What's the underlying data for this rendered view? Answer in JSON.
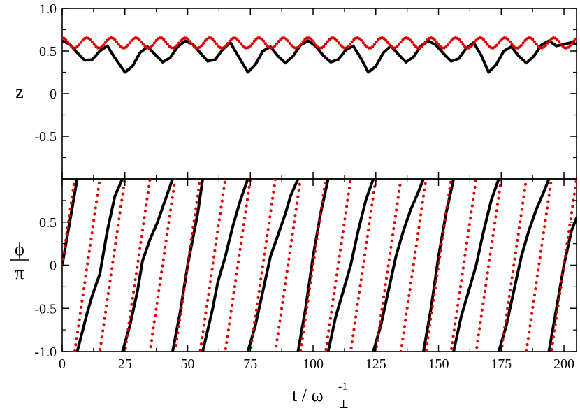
{
  "chart_data": [
    {
      "type": "line",
      "panel": "top",
      "ylabel": "z",
      "xlim": [
        0,
        205
      ],
      "ylim": [
        -1.0,
        1.0
      ],
      "y_ticks": [
        "1.0",
        "0.5",
        "0",
        "-0.5"
      ],
      "y_tick_values": [
        1.0,
        0.5,
        0,
        -0.5
      ],
      "grid": false,
      "colors": {
        "solid": "#000000",
        "dotted": "#e00000"
      },
      "series": [
        {
          "style": "solid-black",
          "x": [
            0,
            3,
            6,
            9,
            12,
            15,
            18,
            21,
            25,
            28,
            31,
            34,
            37,
            40,
            43,
            46,
            49,
            52,
            55,
            58,
            61,
            64,
            67,
            70,
            74,
            77,
            80,
            83,
            86,
            89,
            92,
            95,
            98,
            101,
            104,
            107,
            110,
            113,
            116,
            119,
            122,
            125,
            128,
            131,
            134,
            137,
            140,
            143,
            146,
            149,
            152,
            155,
            158,
            161,
            164,
            167,
            170,
            173,
            176,
            179,
            182,
            185,
            188,
            191,
            194,
            197,
            200,
            203,
            205
          ],
          "values": [
            0.62,
            0.58,
            0.48,
            0.39,
            0.4,
            0.5,
            0.56,
            0.42,
            0.25,
            0.32,
            0.48,
            0.55,
            0.46,
            0.37,
            0.42,
            0.55,
            0.62,
            0.58,
            0.48,
            0.38,
            0.4,
            0.52,
            0.6,
            0.45,
            0.25,
            0.34,
            0.5,
            0.55,
            0.44,
            0.36,
            0.44,
            0.57,
            0.62,
            0.56,
            0.45,
            0.37,
            0.4,
            0.51,
            0.56,
            0.42,
            0.25,
            0.32,
            0.48,
            0.56,
            0.46,
            0.37,
            0.43,
            0.56,
            0.62,
            0.57,
            0.47,
            0.38,
            0.41,
            0.53,
            0.6,
            0.45,
            0.25,
            0.34,
            0.5,
            0.55,
            0.44,
            0.36,
            0.44,
            0.57,
            0.62,
            0.56,
            0.58,
            0.6,
            0.58
          ]
        },
        {
          "style": "dotted-red",
          "oscillation": {
            "mean": 0.595,
            "amplitude": 0.06,
            "period": 9.8
          }
        }
      ]
    },
    {
      "type": "line",
      "panel": "bottom",
      "ylabel": "ϕ",
      "ylabel_denominator": "π",
      "xlabel": "t / ω",
      "xlabel_sup": "-1",
      "xlabel_sub": "⊥",
      "xlim": [
        0,
        205
      ],
      "ylim": [
        -1.0,
        1.0
      ],
      "x_ticks": [
        "0",
        "25",
        "50",
        "75",
        "100",
        "125",
        "150",
        "175",
        "200"
      ],
      "x_tick_values": [
        0,
        25,
        50,
        75,
        100,
        125,
        150,
        175,
        200
      ],
      "y_ticks": [
        "0.5",
        "0",
        "-0.5",
        "-1.0"
      ],
      "y_tick_values": [
        0.5,
        0,
        -0.5,
        -1.0
      ],
      "grid": false,
      "colors": {
        "solid": "#000000",
        "dotted": "#e00000"
      },
      "series": [
        {
          "style": "solid-black",
          "segments": [
            [
              [
                0,
                0.0
              ],
              [
                6,
                1.0
              ]
            ],
            [
              [
                6,
                -1.0
              ],
              [
                10,
                -0.55
              ],
              [
                12,
                -0.35
              ],
              [
                15,
                -0.1
              ],
              [
                18,
                0.4
              ],
              [
                21,
                0.8
              ],
              [
                24,
                1.0
              ]
            ],
            [
              [
                24,
                -1.0
              ],
              [
                27,
                -0.7
              ],
              [
                30,
                -0.3
              ],
              [
                32,
                0.05
              ],
              [
                35,
                0.3
              ],
              [
                38,
                0.5
              ],
              [
                41,
                0.75
              ],
              [
                44,
                1.0
              ]
            ],
            [
              [
                44,
                -1.0
              ],
              [
                47,
                -0.55
              ],
              [
                50,
                0.0
              ],
              [
                54,
                0.6
              ],
              [
                56,
                1.0
              ]
            ],
            [
              [
                56,
                -1.0
              ],
              [
                60,
                -0.5
              ],
              [
                62,
                -0.2
              ],
              [
                65,
                0.1
              ],
              [
                68,
                0.45
              ],
              [
                71,
                0.75
              ],
              [
                74,
                1.0
              ]
            ],
            [
              [
                74,
                -1.0
              ],
              [
                77,
                -0.7
              ],
              [
                80,
                -0.3
              ],
              [
                83,
                0.1
              ],
              [
                86,
                0.35
              ],
              [
                89,
                0.6
              ],
              [
                91,
                0.8
              ],
              [
                94,
                1.0
              ]
            ],
            [
              [
                94,
                -1.0
              ],
              [
                97,
                -0.5
              ],
              [
                100,
                0.1
              ],
              [
                103,
                0.6
              ],
              [
                106,
                1.0
              ]
            ],
            [
              [
                106,
                -1.0
              ],
              [
                109,
                -0.6
              ],
              [
                112,
                -0.3
              ],
              [
                115,
                0.0
              ],
              [
                118,
                0.4
              ],
              [
                121,
                0.75
              ],
              [
                124,
                1.0
              ]
            ],
            [
              [
                124,
                -1.0
              ],
              [
                127,
                -0.7
              ],
              [
                130,
                -0.3
              ],
              [
                133,
                0.1
              ],
              [
                136,
                0.4
              ],
              [
                139,
                0.65
              ],
              [
                142,
                0.85
              ],
              [
                144,
                1.0
              ]
            ],
            [
              [
                144,
                -1.0
              ],
              [
                147,
                -0.5
              ],
              [
                150,
                0.1
              ],
              [
                153,
                0.6
              ],
              [
                156,
                1.0
              ]
            ],
            [
              [
                156,
                -1.0
              ],
              [
                159,
                -0.6
              ],
              [
                162,
                -0.3
              ],
              [
                165,
                0.0
              ],
              [
                168,
                0.4
              ],
              [
                171,
                0.75
              ],
              [
                174,
                1.0
              ]
            ],
            [
              [
                174,
                -1.0
              ],
              [
                177,
                -0.7
              ],
              [
                180,
                -0.3
              ],
              [
                183,
                0.1
              ],
              [
                186,
                0.4
              ],
              [
                189,
                0.65
              ],
              [
                192,
                0.85
              ],
              [
                194,
                1.0
              ]
            ],
            [
              [
                194,
                -1.0
              ],
              [
                197,
                -0.5
              ],
              [
                200,
                0.0
              ],
              [
                203,
                0.4
              ],
              [
                205,
                0.55
              ]
            ]
          ]
        },
        {
          "style": "dotted-red",
          "sawtooth": {
            "start": 0,
            "initial_phase": 0.0,
            "period": 10.0
          }
        }
      ]
    }
  ]
}
